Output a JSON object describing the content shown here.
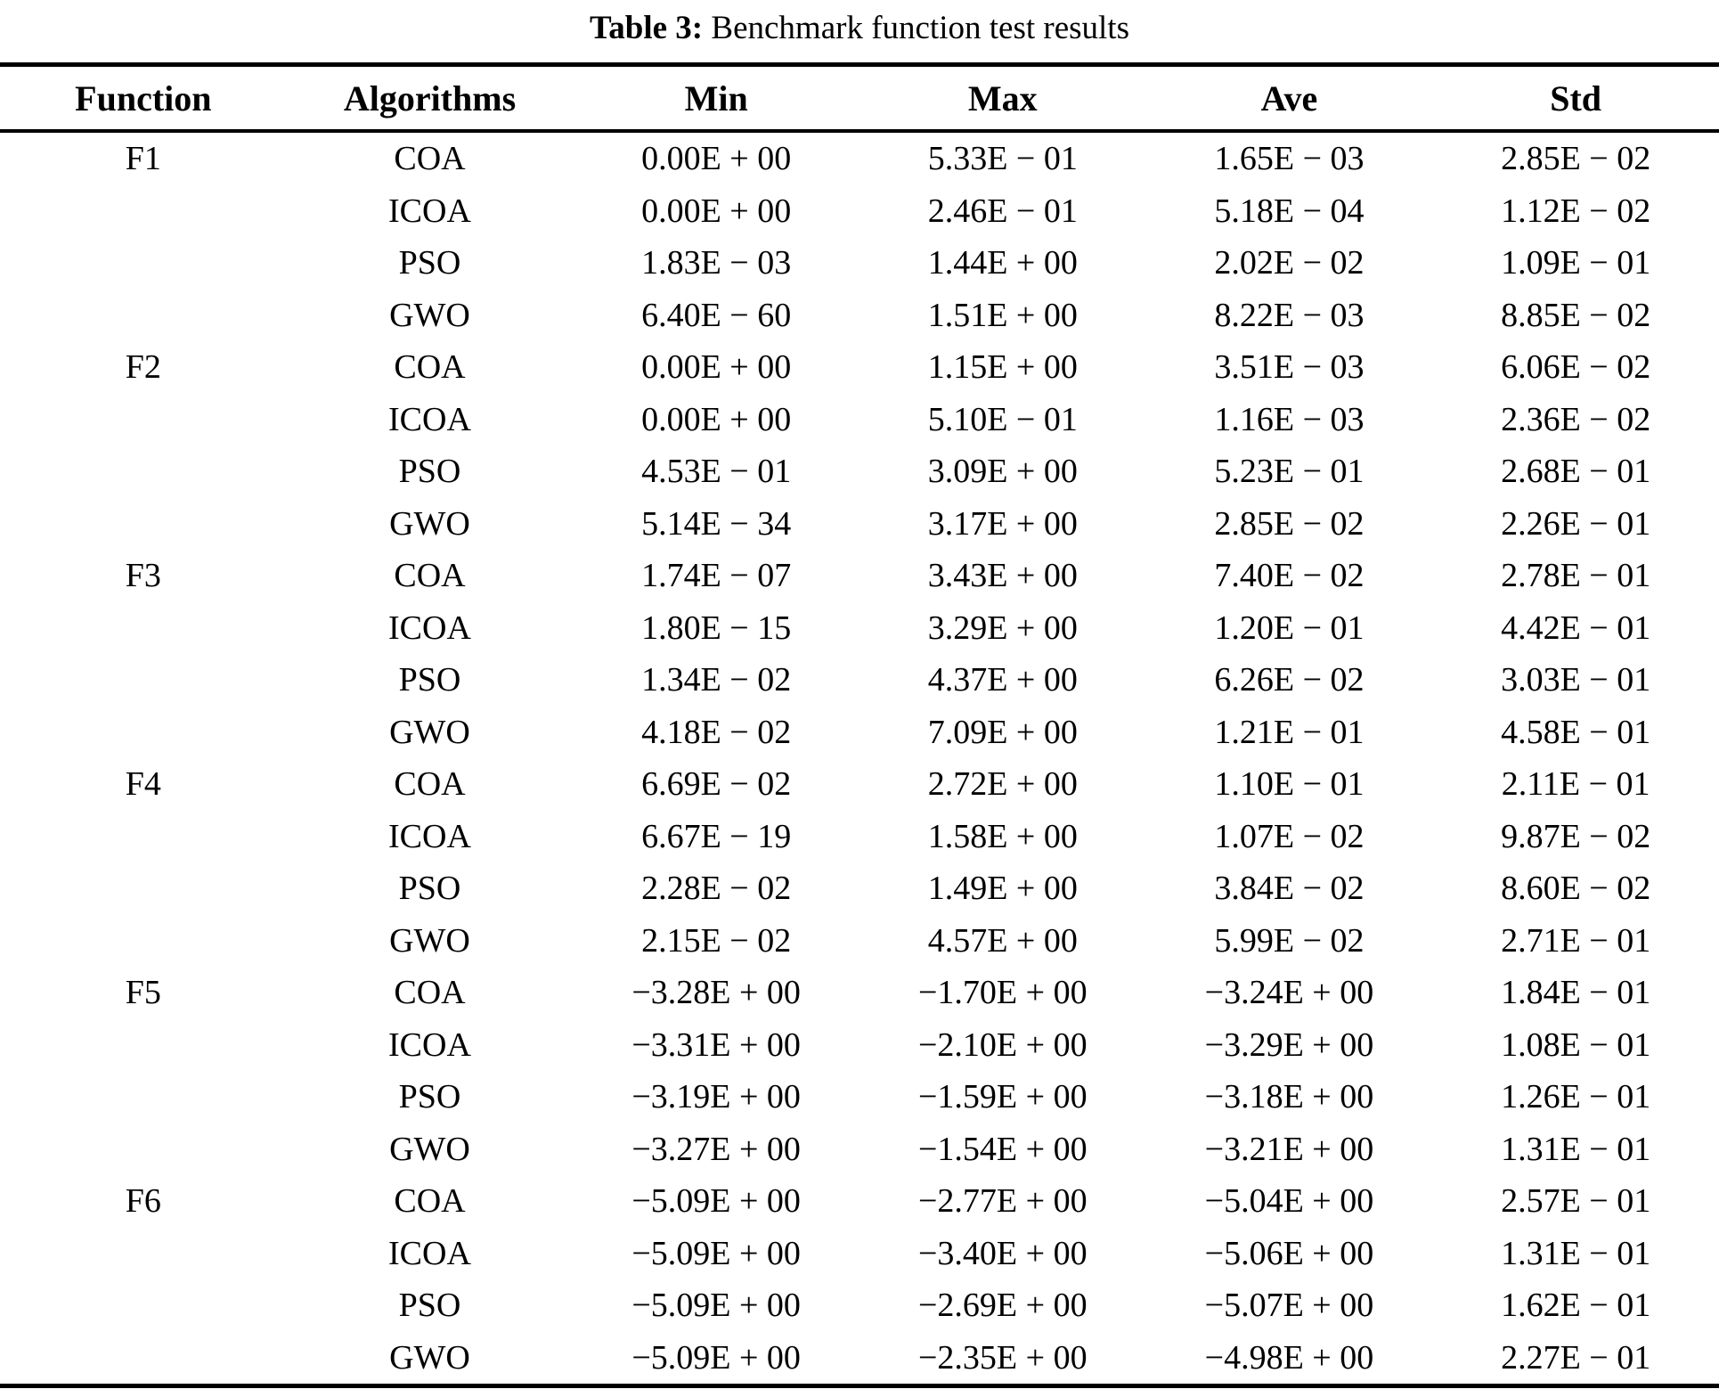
{
  "caption": {
    "label": "Table 3:",
    "text": "Benchmark function test results"
  },
  "table": {
    "columns": [
      "Function",
      "Algorithms",
      "Min",
      "Max",
      "Ave",
      "Std"
    ],
    "groups": [
      {
        "function": "F1",
        "rows": [
          {
            "algorithm": "COA",
            "min": "0.00E + 00",
            "max": "5.33E − 01",
            "ave": "1.65E − 03",
            "std": "2.85E − 02"
          },
          {
            "algorithm": "ICOA",
            "min": "0.00E + 00",
            "max": "2.46E − 01",
            "ave": "5.18E − 04",
            "std": "1.12E − 02"
          },
          {
            "algorithm": "PSO",
            "min": "1.83E − 03",
            "max": "1.44E + 00",
            "ave": "2.02E − 02",
            "std": "1.09E − 01"
          },
          {
            "algorithm": "GWO",
            "min": "6.40E − 60",
            "max": "1.51E + 00",
            "ave": "8.22E − 03",
            "std": "8.85E − 02"
          }
        ]
      },
      {
        "function": "F2",
        "rows": [
          {
            "algorithm": "COA",
            "min": "0.00E + 00",
            "max": "1.15E + 00",
            "ave": "3.51E − 03",
            "std": "6.06E − 02"
          },
          {
            "algorithm": "ICOA",
            "min": "0.00E + 00",
            "max": "5.10E − 01",
            "ave": "1.16E − 03",
            "std": "2.36E − 02"
          },
          {
            "algorithm": "PSO",
            "min": "4.53E − 01",
            "max": "3.09E + 00",
            "ave": "5.23E − 01",
            "std": "2.68E − 01"
          },
          {
            "algorithm": "GWO",
            "min": "5.14E − 34",
            "max": "3.17E + 00",
            "ave": "2.85E − 02",
            "std": "2.26E − 01"
          }
        ]
      },
      {
        "function": "F3",
        "rows": [
          {
            "algorithm": "COA",
            "min": "1.74E − 07",
            "max": "3.43E + 00",
            "ave": "7.40E − 02",
            "std": "2.78E − 01"
          },
          {
            "algorithm": "ICOA",
            "min": "1.80E − 15",
            "max": "3.29E + 00",
            "ave": "1.20E − 01",
            "std": "4.42E − 01"
          },
          {
            "algorithm": "PSO",
            "min": "1.34E − 02",
            "max": "4.37E + 00",
            "ave": "6.26E − 02",
            "std": "3.03E − 01"
          },
          {
            "algorithm": "GWO",
            "min": "4.18E − 02",
            "max": "7.09E + 00",
            "ave": "1.21E − 01",
            "std": "4.58E − 01"
          }
        ]
      },
      {
        "function": "F4",
        "rows": [
          {
            "algorithm": "COA",
            "min": "6.69E − 02",
            "max": "2.72E + 00",
            "ave": "1.10E − 01",
            "std": "2.11E − 01"
          },
          {
            "algorithm": "ICOA",
            "min": "6.67E − 19",
            "max": "1.58E + 00",
            "ave": "1.07E − 02",
            "std": "9.87E − 02"
          },
          {
            "algorithm": "PSO",
            "min": "2.28E − 02",
            "max": "1.49E + 00",
            "ave": "3.84E − 02",
            "std": "8.60E − 02"
          },
          {
            "algorithm": "GWO",
            "min": "2.15E − 02",
            "max": "4.57E + 00",
            "ave": "5.99E − 02",
            "std": "2.71E − 01"
          }
        ]
      },
      {
        "function": "F5",
        "rows": [
          {
            "algorithm": "COA",
            "min": "−3.28E + 00",
            "max": "−1.70E + 00",
            "ave": "−3.24E + 00",
            "std": "1.84E − 01"
          },
          {
            "algorithm": "ICOA",
            "min": "−3.31E + 00",
            "max": "−2.10E + 00",
            "ave": "−3.29E + 00",
            "std": "1.08E − 01"
          },
          {
            "algorithm": "PSO",
            "min": "−3.19E + 00",
            "max": "−1.59E + 00",
            "ave": "−3.18E + 00",
            "std": "1.26E − 01"
          },
          {
            "algorithm": "GWO",
            "min": "−3.27E + 00",
            "max": "−1.54E + 00",
            "ave": "−3.21E + 00",
            "std": "1.31E − 01"
          }
        ]
      },
      {
        "function": "F6",
        "rows": [
          {
            "algorithm": "COA",
            "min": "−5.09E + 00",
            "max": "−2.77E + 00",
            "ave": "−5.04E + 00",
            "std": "2.57E − 01"
          },
          {
            "algorithm": "ICOA",
            "min": "−5.09E + 00",
            "max": "−3.40E + 00",
            "ave": "−5.06E + 00",
            "std": "1.31E − 01"
          },
          {
            "algorithm": "PSO",
            "min": "−5.09E + 00",
            "max": "−2.69E + 00",
            "ave": "−5.07E + 00",
            "std": "1.62E − 01"
          },
          {
            "algorithm": "GWO",
            "min": "−5.09E + 00",
            "max": "−2.35E + 00",
            "ave": "−4.98E + 00",
            "std": "2.27E − 01"
          }
        ]
      }
    ]
  }
}
